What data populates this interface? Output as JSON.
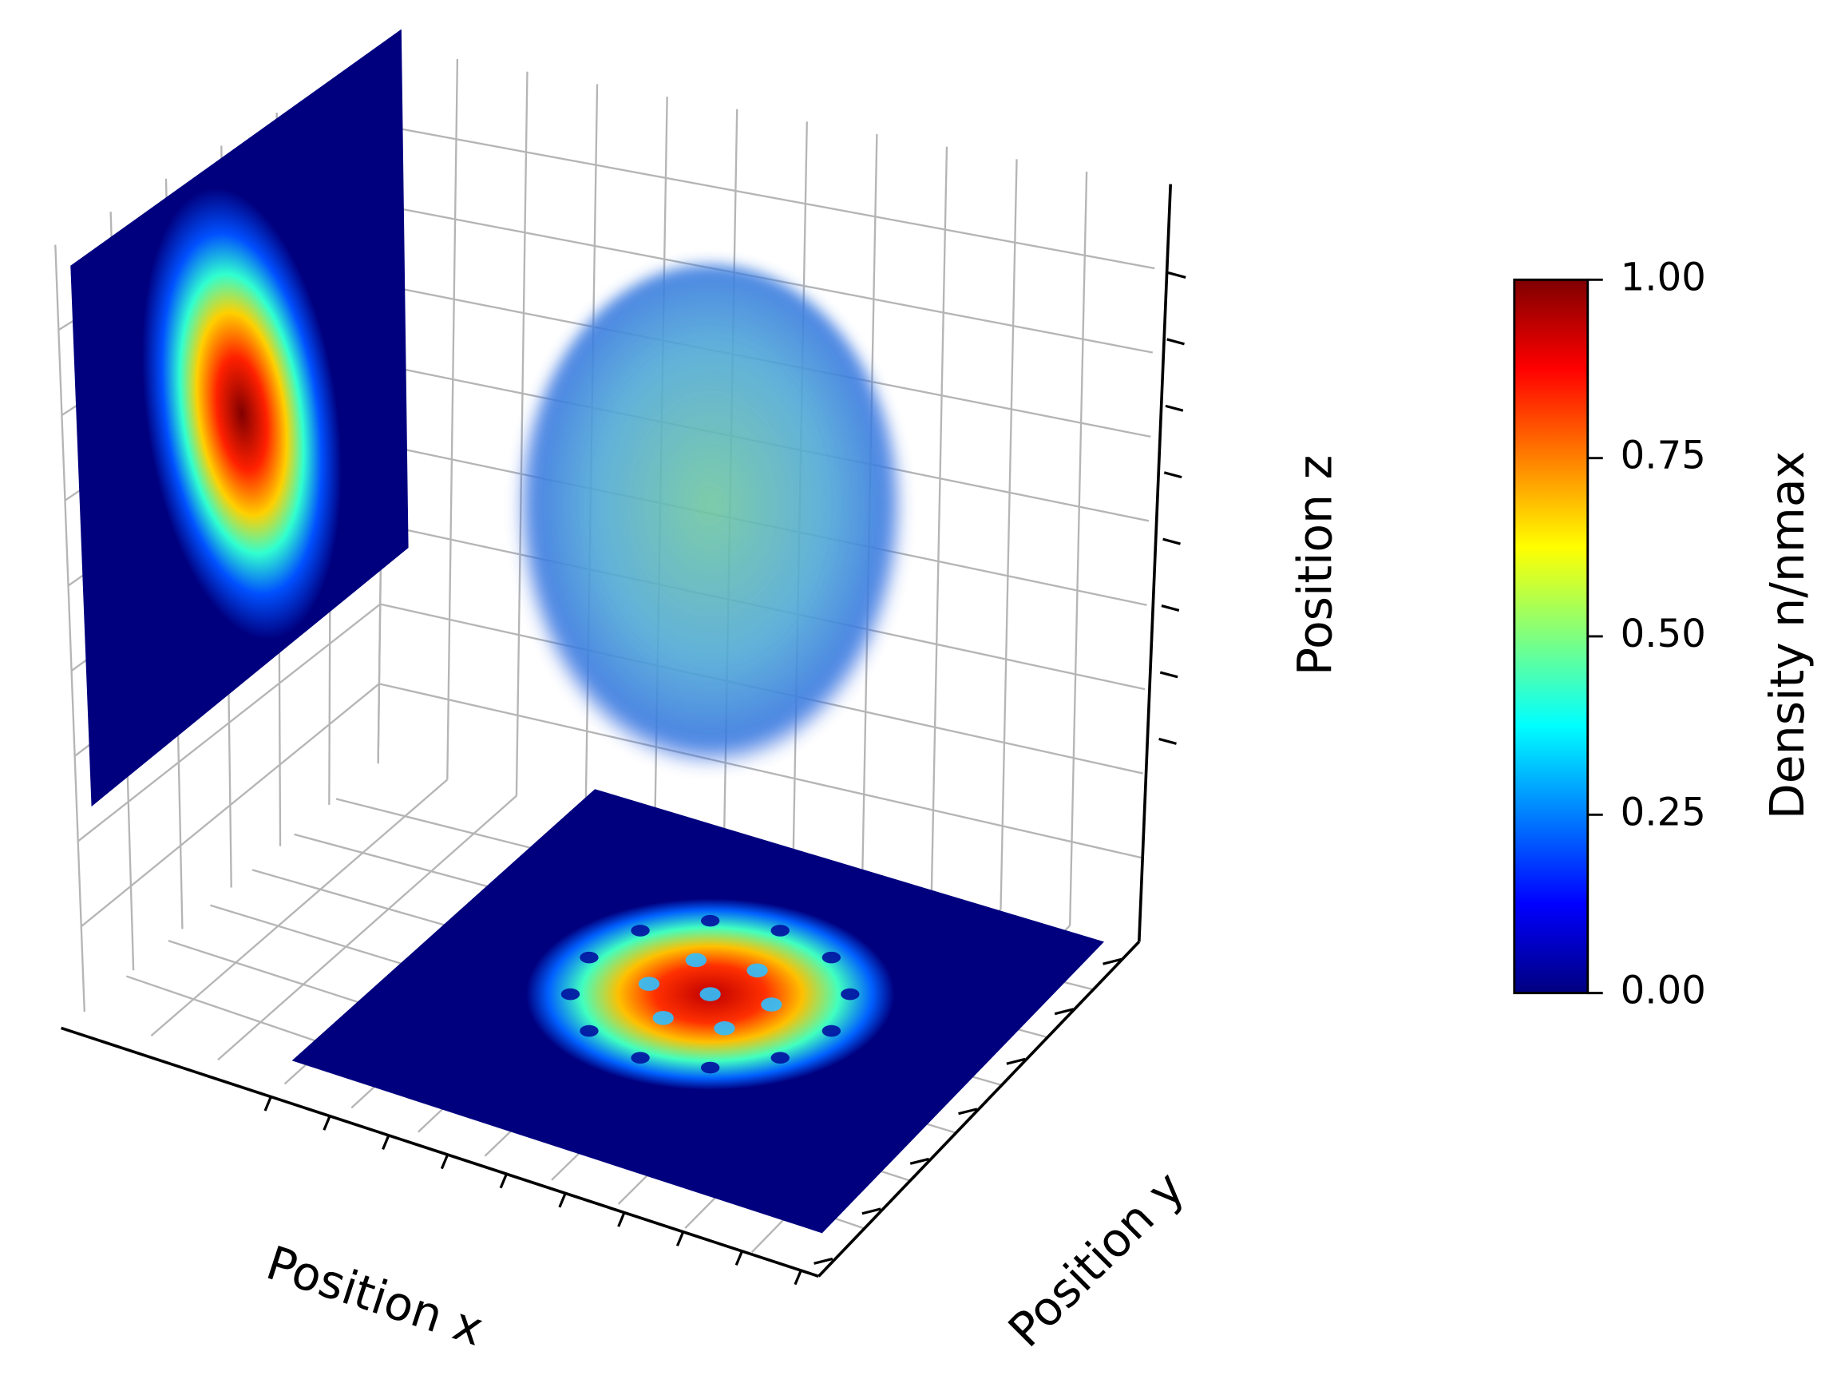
{
  "chart_data": {
    "type": "3d-density",
    "xlabel": "Position x",
    "ylabel": "Position y",
    "zlabel": "Position z",
    "colorbar": {
      "label": "Density n/nmax",
      "colormap": "jet",
      "lim": [
        0,
        1
      ],
      "ticks": [
        {
          "value": 0,
          "label": "0.00"
        },
        {
          "value": 0.25,
          "label": "0.25"
        },
        {
          "value": 0.5,
          "label": "0.50"
        },
        {
          "value": 0.75,
          "label": "0.75"
        },
        {
          "value": 1,
          "label": "1.00"
        }
      ]
    }
  }
}
